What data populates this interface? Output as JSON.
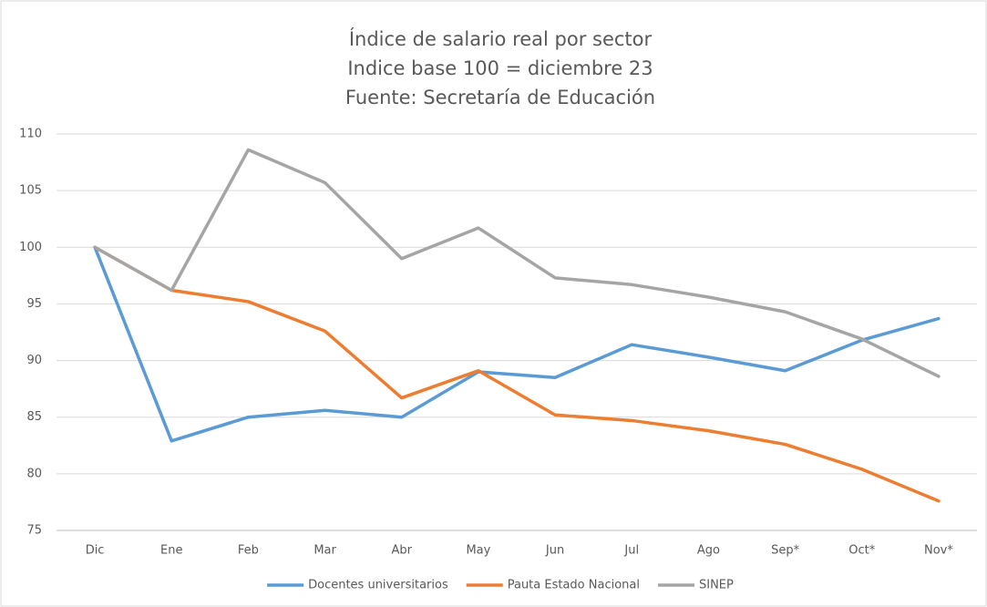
{
  "chart_data": {
    "type": "line",
    "title": "Índice de salario real por sector",
    "subtitle": "Indice base 100 = diciembre 23",
    "source": "Fuente: Secretaría de Educación",
    "categories": [
      "Dic",
      "Ene",
      "Feb",
      "Mar",
      "Abr",
      "May",
      "Jun",
      "Jul",
      "Ago",
      "Sep*",
      "Oct*",
      "Nov*"
    ],
    "series": [
      {
        "name": "Docentes universitarios",
        "color": "#5b9bd5",
        "values": [
          100,
          82.9,
          85.0,
          85.6,
          85.0,
          89.0,
          88.5,
          91.4,
          90.3,
          89.1,
          91.8,
          93.7
        ]
      },
      {
        "name": "Pauta Estado Nacional",
        "color": "#ed7d31",
        "values": [
          100,
          96.2,
          95.2,
          92.6,
          86.7,
          89.1,
          85.2,
          84.7,
          83.8,
          82.6,
          80.4,
          77.6
        ]
      },
      {
        "name": "SINEP",
        "color": "#a5a5a5",
        "values": [
          100,
          96.2,
          108.6,
          105.7,
          99.0,
          101.7,
          97.3,
          96.7,
          95.6,
          94.3,
          91.9,
          88.6
        ]
      }
    ],
    "ylim": [
      75,
      110
    ],
    "yticks": [
      75,
      80,
      85,
      90,
      95,
      100,
      105,
      110
    ],
    "grid": true,
    "legend": "bottom"
  }
}
